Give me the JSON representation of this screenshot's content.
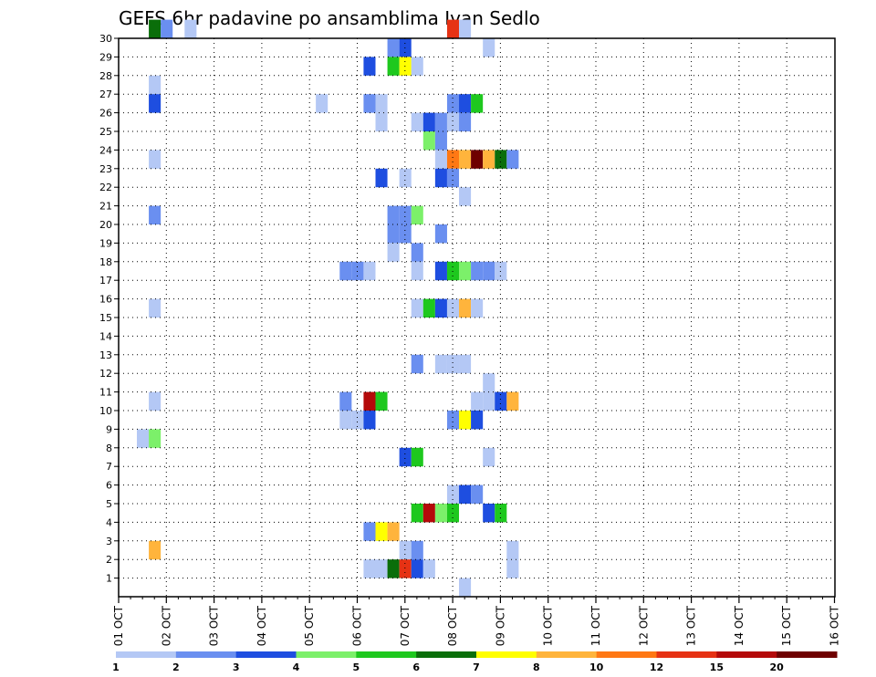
{
  "chart_data": {
    "type": "heatmap",
    "title": "GEFS 6hr padavine po ansamblima Ivan Sedlo",
    "xlabel": "",
    "ylabel": "",
    "x_tick_labels": [
      "01 OCT",
      "02 OCT",
      "03 OCT",
      "04 OCT",
      "05 OCT",
      "06 OCT",
      "07 OCT",
      "08 OCT",
      "09 OCT",
      "10 OCT",
      "11 OCT",
      "12 OCT",
      "13 OCT",
      "14 OCT",
      "15 OCT",
      "16 OCT"
    ],
    "y_tick_labels": [
      "1",
      "2",
      "3",
      "4",
      "5",
      "6",
      "7",
      "8",
      "9",
      "10",
      "11",
      "12",
      "13",
      "14",
      "15",
      "16",
      "17",
      "18",
      "19",
      "20",
      "21",
      "22",
      "23",
      "24",
      "25",
      "26",
      "27",
      "28",
      "29",
      "30"
    ],
    "xlim": [
      0,
      60
    ],
    "ylim": [
      0,
      30
    ],
    "grid": true,
    "colorbar": {
      "labels": [
        "1",
        "2",
        "3",
        "4",
        "5",
        "6",
        "7",
        "8",
        "10",
        "12",
        "15",
        "20"
      ],
      "colors": [
        "#b4c8f5",
        "#6a8ff0",
        "#1e4ee0",
        "#7cf06a",
        "#1ec81e",
        "#0a6e0a",
        "#ffff00",
        "#ffb43c",
        "#ff7814",
        "#e63214",
        "#b40a0a",
        "#6e0000"
      ]
    },
    "cells": [
      [
        30,
        1,
        5
      ],
      [
        30,
        2,
        1
      ],
      [
        30,
        4,
        0
      ],
      [
        30,
        26,
        9
      ],
      [
        30,
        27,
        0
      ],
      [
        29,
        21,
        1
      ],
      [
        29,
        22,
        2
      ],
      [
        29,
        29,
        0
      ],
      [
        28,
        19,
        2
      ],
      [
        28,
        21,
        4
      ],
      [
        28,
        22,
        6
      ],
      [
        28,
        23,
        0
      ],
      [
        27,
        1,
        0
      ],
      [
        26,
        1,
        2
      ],
      [
        26,
        15,
        0
      ],
      [
        26,
        19,
        1
      ],
      [
        26,
        20,
        0
      ],
      [
        26,
        26,
        1
      ],
      [
        26,
        27,
        2
      ],
      [
        26,
        28,
        4
      ],
      [
        25,
        20,
        0
      ],
      [
        25,
        23,
        0
      ],
      [
        25,
        24,
        2
      ],
      [
        25,
        25,
        1
      ],
      [
        25,
        26,
        0
      ],
      [
        25,
        27,
        1
      ],
      [
        24,
        24,
        3
      ],
      [
        24,
        25,
        1
      ],
      [
        23,
        1,
        0
      ],
      [
        23,
        25,
        0
      ],
      [
        23,
        26,
        8
      ],
      [
        23,
        27,
        7
      ],
      [
        23,
        28,
        11
      ],
      [
        23,
        29,
        7
      ],
      [
        23,
        30,
        5
      ],
      [
        23,
        31,
        1
      ],
      [
        22,
        20,
        2
      ],
      [
        22,
        22,
        0
      ],
      [
        22,
        25,
        2
      ],
      [
        22,
        26,
        1
      ],
      [
        21,
        27,
        0
      ],
      [
        20,
        1,
        1
      ],
      [
        20,
        21,
        1
      ],
      [
        20,
        22,
        1
      ],
      [
        20,
        23,
        3
      ],
      [
        19,
        21,
        1
      ],
      [
        19,
        22,
        1
      ],
      [
        19,
        25,
        1
      ],
      [
        18,
        21,
        0
      ],
      [
        18,
        23,
        1
      ],
      [
        17,
        17,
        1
      ],
      [
        17,
        18,
        1
      ],
      [
        17,
        19,
        0
      ],
      [
        17,
        23,
        0
      ],
      [
        17,
        25,
        2
      ],
      [
        17,
        26,
        4
      ],
      [
        17,
        27,
        3
      ],
      [
        17,
        28,
        1
      ],
      [
        17,
        29,
        1
      ],
      [
        17,
        30,
        0
      ],
      [
        15,
        1,
        0
      ],
      [
        15,
        23,
        0
      ],
      [
        15,
        24,
        4
      ],
      [
        15,
        25,
        2
      ],
      [
        15,
        26,
        0
      ],
      [
        15,
        27,
        7
      ],
      [
        15,
        28,
        0
      ],
      [
        12,
        23,
        1
      ],
      [
        12,
        25,
        0
      ],
      [
        12,
        26,
        0
      ],
      [
        12,
        27,
        0
      ],
      [
        11,
        29,
        0
      ],
      [
        10,
        1,
        0
      ],
      [
        10,
        17,
        1
      ],
      [
        10,
        19,
        10
      ],
      [
        10,
        20,
        4
      ],
      [
        10,
        28,
        0
      ],
      [
        10,
        29,
        0
      ],
      [
        10,
        30,
        2
      ],
      [
        10,
        31,
        7
      ],
      [
        9,
        17,
        0
      ],
      [
        9,
        18,
        0
      ],
      [
        9,
        19,
        2
      ],
      [
        9,
        26,
        1
      ],
      [
        9,
        27,
        6
      ],
      [
        9,
        28,
        2
      ],
      [
        8,
        0,
        0
      ],
      [
        8,
        1,
        3
      ],
      [
        7,
        22,
        2
      ],
      [
        7,
        23,
        4
      ],
      [
        7,
        29,
        0
      ],
      [
        5,
        26,
        0
      ],
      [
        5,
        27,
        2
      ],
      [
        5,
        28,
        1
      ],
      [
        4,
        23,
        4
      ],
      [
        4,
        24,
        10
      ],
      [
        4,
        25,
        3
      ],
      [
        4,
        26,
        4
      ],
      [
        4,
        29,
        2
      ],
      [
        4,
        30,
        4
      ],
      [
        3,
        19,
        1
      ],
      [
        3,
        20,
        6
      ],
      [
        3,
        21,
        7
      ],
      [
        2,
        1,
        7
      ],
      [
        2,
        22,
        0
      ],
      [
        2,
        23,
        1
      ],
      [
        2,
        31,
        0
      ],
      [
        1,
        19,
        0
      ],
      [
        1,
        20,
        0
      ],
      [
        1,
        21,
        5
      ],
      [
        1,
        22,
        9
      ],
      [
        1,
        23,
        2
      ],
      [
        1,
        24,
        0
      ],
      [
        1,
        31,
        0
      ],
      [
        0,
        27,
        0
      ]
    ]
  }
}
